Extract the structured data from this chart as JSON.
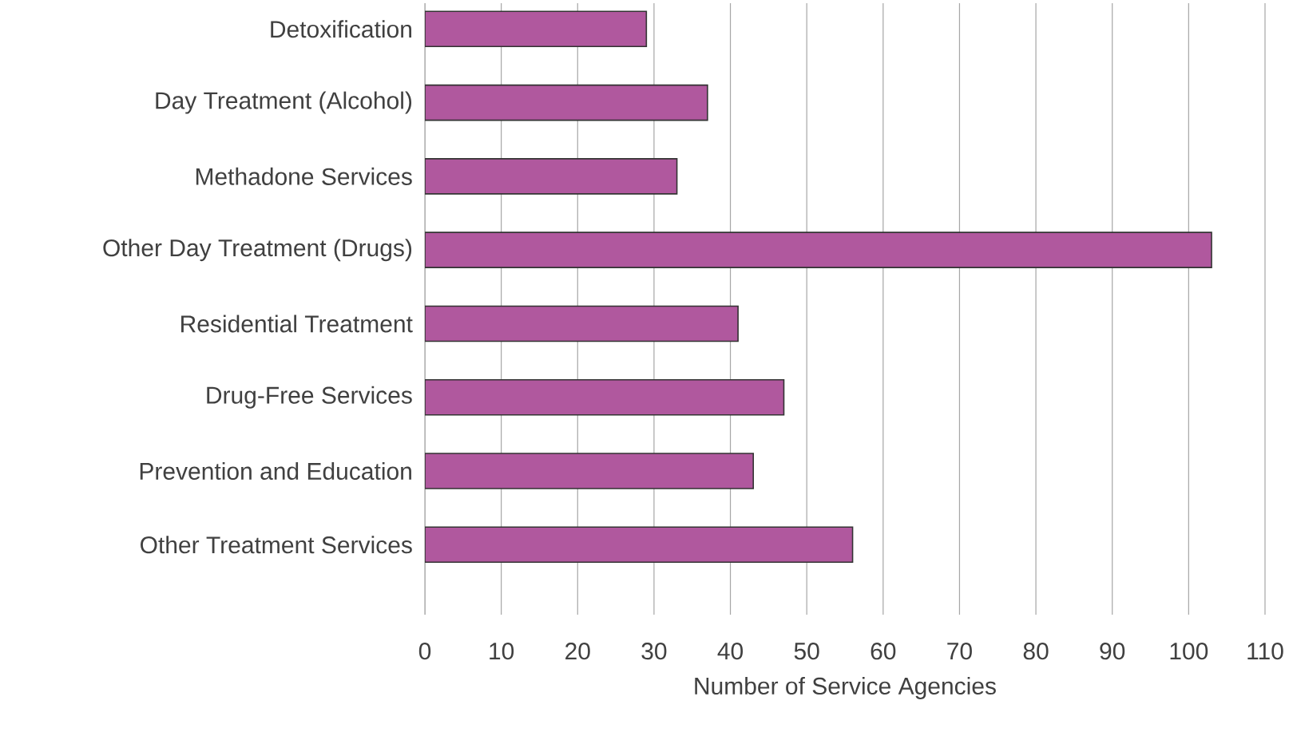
{
  "chart_data": {
    "type": "bar",
    "orientation": "horizontal",
    "xlabel": "Number of Service Agencies",
    "categories": [
      "Detoxification",
      "Day Treatment (Alcohol)",
      "Methadone Services",
      "Other Day Treatment (Drugs)",
      "Residential Treatment",
      "Drug-Free Services",
      "Prevention and Education",
      "Other Treatment Services"
    ],
    "values": [
      29,
      37,
      33,
      103,
      41,
      47,
      43,
      56
    ],
    "color": "#b0589e",
    "xlim": [
      0,
      110
    ],
    "xticks": [
      0,
      10,
      20,
      30,
      40,
      50,
      60,
      70,
      80,
      90,
      100,
      110
    ],
    "grid": "x"
  }
}
